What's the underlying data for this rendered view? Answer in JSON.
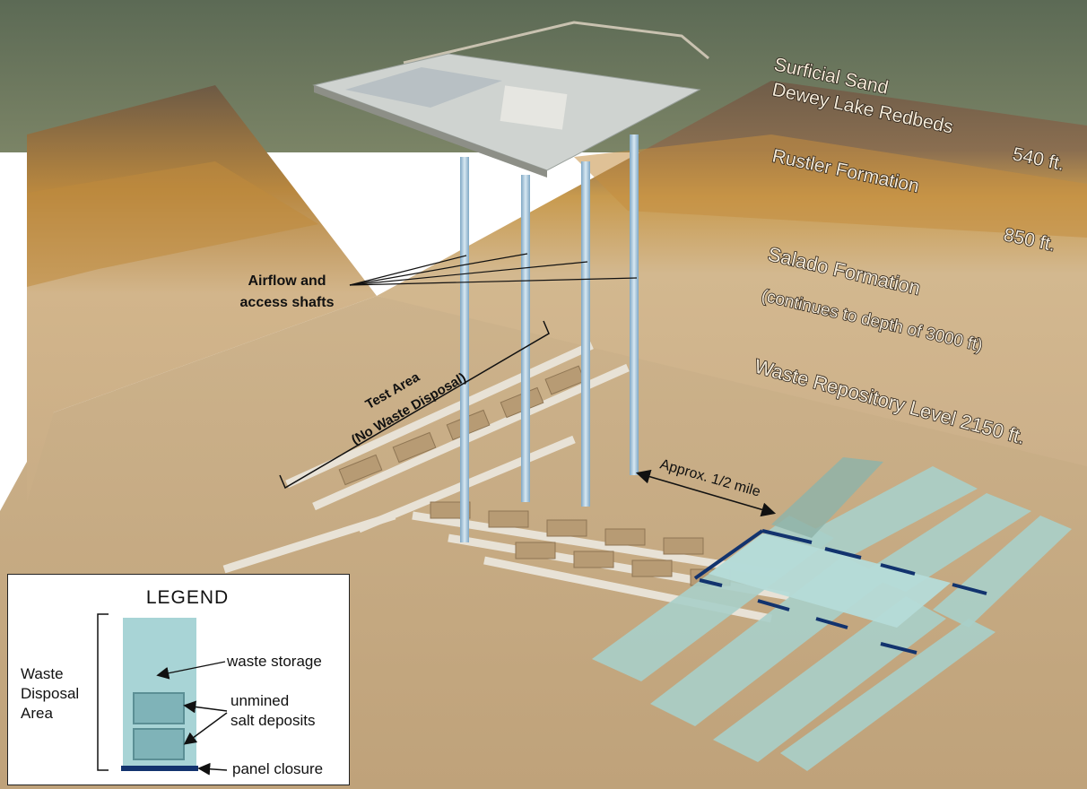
{
  "layers": {
    "surficial_sand": "Surficial Sand",
    "dewey_lake": "Dewey Lake Redbeds",
    "depth_540": "540 ft.",
    "rustler": "Rustler Formation",
    "depth_850": "850 ft.",
    "salado": "Salado Formation",
    "salado_note": "(continues to depth of 3000 ft)",
    "repository": "Waste Repository Level 2150 ft."
  },
  "callouts": {
    "shafts_line1": "Airflow and",
    "shafts_line2": "access shafts",
    "test_area_line1": "Test Area",
    "test_area_line2": "(No Waste Disposal)",
    "distance": "Approx. 1/2 mile"
  },
  "legend": {
    "title": "LEGEND",
    "waste_storage": "waste storage",
    "unmined_line1": "unmined",
    "unmined_line2": "salt deposits",
    "panel_closure": "panel closure",
    "area_line1": "Waste",
    "area_line2": "Disposal",
    "area_line3": "Area"
  },
  "colors": {
    "waste_storage": "#a8d4d6",
    "salt_pillar": "#7fb3b8",
    "panel_closure": "#12336e",
    "salado_layer": "#cbb58f",
    "rustler_layer": "#c9964a",
    "floor": "#c8aa80"
  }
}
